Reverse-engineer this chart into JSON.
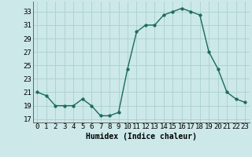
{
  "x": [
    0,
    1,
    2,
    3,
    4,
    5,
    6,
    7,
    8,
    9,
    10,
    11,
    12,
    13,
    14,
    15,
    16,
    17,
    18,
    19,
    20,
    21,
    22,
    23
  ],
  "y": [
    21,
    20.5,
    19,
    19,
    19,
    20,
    19,
    17.5,
    17.5,
    18,
    24.5,
    30,
    31,
    31,
    32.5,
    33,
    33.5,
    33,
    32.5,
    27,
    24.5,
    21,
    20,
    19.5
  ],
  "line_color": "#1a6b5a",
  "marker_color": "#1a6b5a",
  "bg_color": "#cce8e8",
  "grid_color": "#aad0d0",
  "xlabel": "Humidex (Indice chaleur)",
  "xlim": [
    -0.5,
    23.5
  ],
  "ylim": [
    16.5,
    34.5
  ],
  "yticks": [
    17,
    19,
    21,
    23,
    25,
    27,
    29,
    31,
    33
  ],
  "xticks": [
    0,
    1,
    2,
    3,
    4,
    5,
    6,
    7,
    8,
    9,
    10,
    11,
    12,
    13,
    14,
    15,
    16,
    17,
    18,
    19,
    20,
    21,
    22,
    23
  ],
  "xlabel_fontsize": 7,
  "tick_fontsize": 6.5,
  "line_width": 1.0,
  "marker_size": 2.5
}
